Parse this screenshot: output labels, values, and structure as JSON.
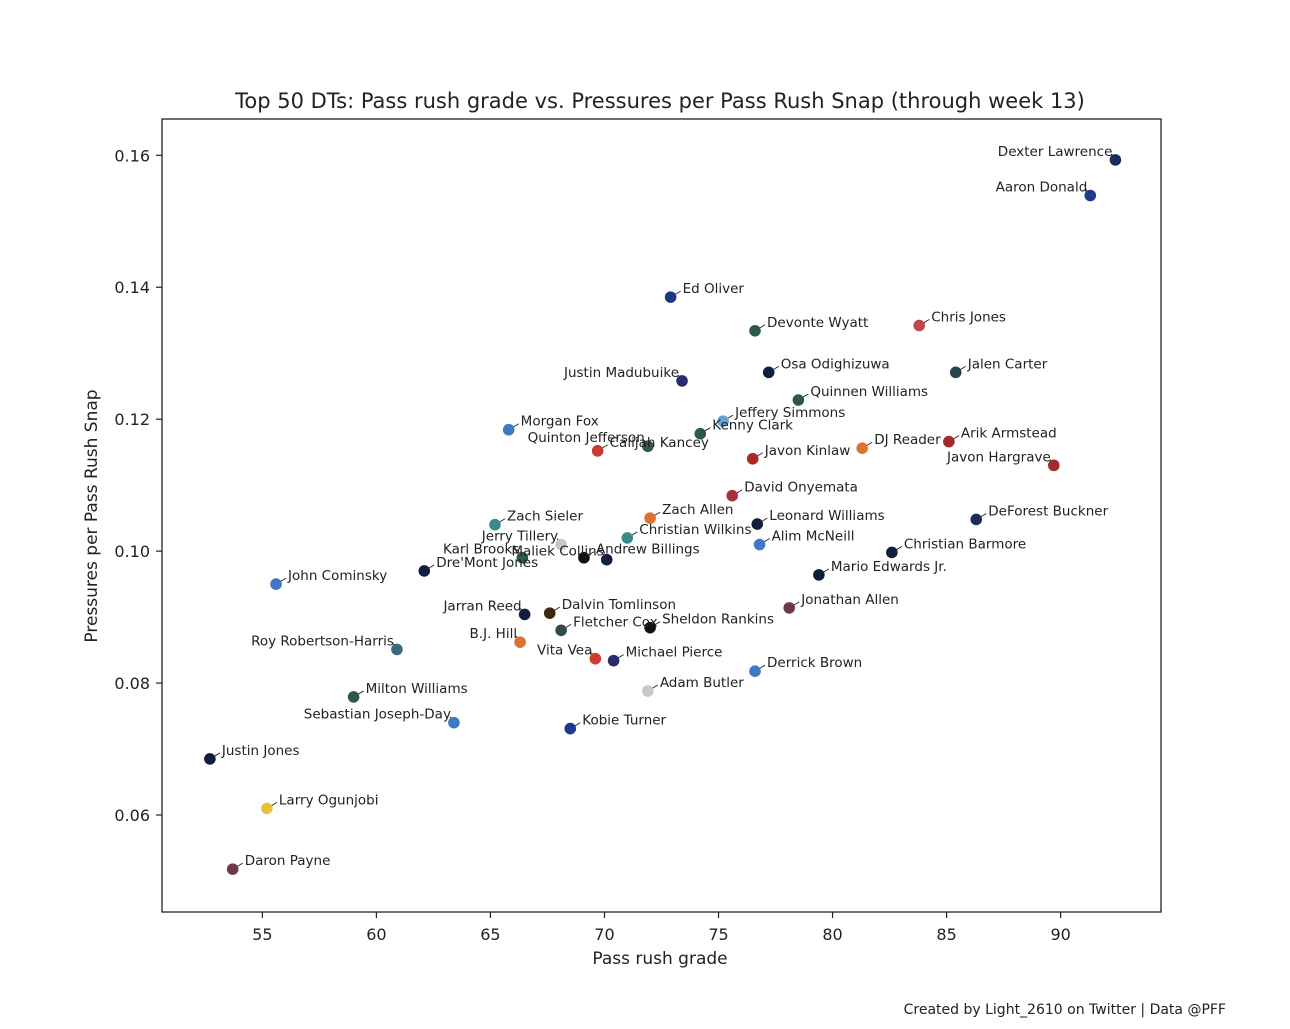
{
  "chart_data": {
    "type": "scatter",
    "title": "Top 50 DTs: Pass rush grade vs. Pressures per Pass Rush Snap (through week 13)",
    "xlabel": "Pass rush grade",
    "ylabel": "Pressures per Pass Rush Snap",
    "xlim": [
      50.6,
      94.4
    ],
    "ylim": [
      0.0453,
      0.1655
    ],
    "xticks": [
      55,
      60,
      65,
      70,
      75,
      80,
      85,
      90
    ],
    "xtick_labels": [
      "55",
      "60",
      "65",
      "70",
      "75",
      "80",
      "85",
      "90"
    ],
    "yticks": [
      0.06,
      0.08,
      0.1,
      0.12,
      0.14,
      0.16
    ],
    "ytick_labels": [
      "0.06",
      "0.08",
      "0.10",
      "0.12",
      "0.14",
      "0.16"
    ],
    "grid": false,
    "credit": "Created by Light_2610 on Twitter | Data @PFF",
    "points": [
      {
        "name": "Dexter Lawrence",
        "x": 92.4,
        "y": 0.1593,
        "color": "#1b2a5c",
        "label_pos": "left"
      },
      {
        "name": "Aaron Donald",
        "x": 91.3,
        "y": 0.1539,
        "color": "#1e3a8a",
        "label_pos": "left"
      },
      {
        "name": "Ed Oliver",
        "x": 72.9,
        "y": 0.1385,
        "color": "#1f3585",
        "label_pos": "right"
      },
      {
        "name": "Devonte Wyatt",
        "x": 76.6,
        "y": 0.1334,
        "color": "#2f5a4a",
        "label_pos": "right"
      },
      {
        "name": "Chris Jones",
        "x": 83.8,
        "y": 0.1342,
        "color": "#c0474a",
        "label_pos": "right"
      },
      {
        "name": "Osa Odighizuwa",
        "x": 77.2,
        "y": 0.1271,
        "color": "#0f1f3d",
        "label_pos": "right"
      },
      {
        "name": "Jalen Carter",
        "x": 85.4,
        "y": 0.1271,
        "color": "#24474a",
        "label_pos": "right"
      },
      {
        "name": "Justin Madubuike",
        "x": 73.4,
        "y": 0.1258,
        "color": "#2a2a6e",
        "label_pos": "left"
      },
      {
        "name": "Quinnen Williams",
        "x": 78.5,
        "y": 0.1229,
        "color": "#2d5a45",
        "label_pos": "right"
      },
      {
        "name": "Jeffery Simmons",
        "x": 75.2,
        "y": 0.1197,
        "color": "#6a9fd8",
        "label_pos": "right"
      },
      {
        "name": "Morgan Fox",
        "x": 65.8,
        "y": 0.1184,
        "color": "#3f79c4",
        "label_pos": "right"
      },
      {
        "name": "Kenny Clark",
        "x": 74.2,
        "y": 0.1178,
        "color": "#2d5a45",
        "label_pos": "right"
      },
      {
        "name": "Arik Armstead",
        "x": 85.1,
        "y": 0.1166,
        "color": "#a32a2a",
        "label_pos": "right"
      },
      {
        "name": "Quinton Jefferson",
        "x": 71.9,
        "y": 0.1159,
        "color": "#2f5a45",
        "label_pos": "left"
      },
      {
        "name": "DJ Reader",
        "x": 81.3,
        "y": 0.1156,
        "color": "#e0722f",
        "label_pos": "right"
      },
      {
        "name": "Calijah Kancey",
        "x": 69.7,
        "y": 0.1152,
        "color": "#c63c2f",
        "label_pos": "right"
      },
      {
        "name": "Javon Kinlaw",
        "x": 76.5,
        "y": 0.114,
        "color": "#aa2a1f",
        "label_pos": "right"
      },
      {
        "name": "Javon Hargrave",
        "x": 89.7,
        "y": 0.113,
        "color": "#a32a2a",
        "label_pos": "left"
      },
      {
        "name": "David Onyemata",
        "x": 75.6,
        "y": 0.1084,
        "color": "#a3323a",
        "label_pos": "right"
      },
      {
        "name": "Zach Allen",
        "x": 72.0,
        "y": 0.105,
        "color": "#e0722f",
        "label_pos": "right"
      },
      {
        "name": "DeForest Buckner",
        "x": 86.3,
        "y": 0.1048,
        "color": "#1b2e5a",
        "label_pos": "right"
      },
      {
        "name": "Zach Sieler",
        "x": 65.2,
        "y": 0.104,
        "color": "#3a8a8a",
        "label_pos": "right"
      },
      {
        "name": "Leonard Williams",
        "x": 76.7,
        "y": 0.1041,
        "color": "#0f1f3d",
        "label_pos": "right"
      },
      {
        "name": "Christian Wilkins",
        "x": 71.0,
        "y": 0.102,
        "color": "#3a8a8a",
        "label_pos": "right"
      },
      {
        "name": "Jerry Tillery",
        "x": 68.1,
        "y": 0.101,
        "color": "#c8c8c8",
        "label_pos": "left"
      },
      {
        "name": "Alim McNeill",
        "x": 76.8,
        "y": 0.101,
        "color": "#3f79c4",
        "label_pos": "right"
      },
      {
        "name": "Christian Barmore",
        "x": 82.6,
        "y": 0.0998,
        "color": "#0f1f3d",
        "label_pos": "right"
      },
      {
        "name": "Karl Brooks",
        "x": 66.4,
        "y": 0.099,
        "color": "#2d5a45",
        "label_pos": "left"
      },
      {
        "name": "Andrew Billings",
        "x": 69.1,
        "y": 0.099,
        "color": "#111111",
        "label_pos": "right"
      },
      {
        "name": "Maliek Collins",
        "x": 70.1,
        "y": 0.0987,
        "color": "#0f1f3d",
        "label_pos": "left"
      },
      {
        "name": "Mario Edwards Jr.",
        "x": 79.4,
        "y": 0.0964,
        "color": "#0f1f3d",
        "label_pos": "right"
      },
      {
        "name": "Dre'Mont Jones",
        "x": 62.1,
        "y": 0.097,
        "color": "#0f1f3d",
        "label_pos": "right"
      },
      {
        "name": "John Cominsky",
        "x": 55.6,
        "y": 0.095,
        "color": "#3f79c4",
        "label_pos": "right"
      },
      {
        "name": "Jonathan Allen",
        "x": 78.1,
        "y": 0.0914,
        "color": "#6b3a4a",
        "label_pos": "right"
      },
      {
        "name": "Jarran Reed",
        "x": 66.5,
        "y": 0.0904,
        "color": "#0f1f3d",
        "label_pos": "left"
      },
      {
        "name": "Dalvin Tomlinson",
        "x": 67.6,
        "y": 0.0906,
        "color": "#3a2a10",
        "label_pos": "right"
      },
      {
        "name": "Sheldon Rankins",
        "x": 72.0,
        "y": 0.0884,
        "color": "#111111",
        "label_pos": "right"
      },
      {
        "name": "B.J. Hill",
        "x": 66.3,
        "y": 0.0862,
        "color": "#e0722f",
        "label_pos": "left"
      },
      {
        "name": "Fletcher Cox",
        "x": 68.1,
        "y": 0.088,
        "color": "#2f4a4a",
        "label_pos": "right"
      },
      {
        "name": "Roy Robertson-Harris",
        "x": 60.9,
        "y": 0.0851,
        "color": "#3a6a7a",
        "label_pos": "left"
      },
      {
        "name": "Vita Vea",
        "x": 69.6,
        "y": 0.0837,
        "color": "#d03a30",
        "label_pos": "left"
      },
      {
        "name": "Michael Pierce",
        "x": 70.4,
        "y": 0.0834,
        "color": "#2a2a6e",
        "label_pos": "right"
      },
      {
        "name": "Derrick Brown",
        "x": 76.6,
        "y": 0.0818,
        "color": "#3f79c4",
        "label_pos": "right"
      },
      {
        "name": "Adam Butler",
        "x": 71.9,
        "y": 0.0788,
        "color": "#c8c8c8",
        "label_pos": "right"
      },
      {
        "name": "Milton Williams",
        "x": 59.0,
        "y": 0.0779,
        "color": "#2d5a45",
        "label_pos": "right"
      },
      {
        "name": "Sebastian Joseph-Day",
        "x": 63.4,
        "y": 0.074,
        "color": "#3f79c4",
        "label_pos": "left"
      },
      {
        "name": "Kobie Turner",
        "x": 68.5,
        "y": 0.0731,
        "color": "#1e3a8a",
        "label_pos": "right"
      },
      {
        "name": "Justin Jones",
        "x": 52.7,
        "y": 0.0685,
        "color": "#0f1f3d",
        "label_pos": "right"
      },
      {
        "name": "Larry Ogunjobi",
        "x": 55.2,
        "y": 0.061,
        "color": "#e8c040",
        "label_pos": "right"
      },
      {
        "name": "Daron Payne",
        "x": 53.7,
        "y": 0.0518,
        "color": "#6b3a4a",
        "label_pos": "right"
      }
    ]
  }
}
